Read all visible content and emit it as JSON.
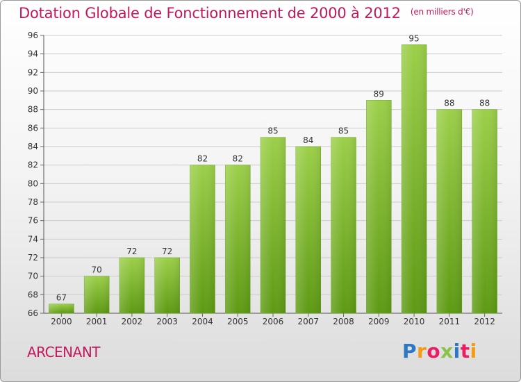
{
  "title": "Dotation Globale de Fonctionnement de 2000 à 2012",
  "unit": "(en milliers d'€)",
  "commune": "ARCENANT",
  "logo": {
    "text": "Proxiti",
    "letters": [
      {
        "ch": "P",
        "color": "#2b78c5"
      },
      {
        "ch": "r",
        "color": "#f39c12"
      },
      {
        "ch": "o",
        "color": "#e91e63"
      },
      {
        "ch": "x",
        "color": "#8bc34a"
      },
      {
        "ch": "i",
        "color": "#2b78c5"
      },
      {
        "ch": "t",
        "color": "#e91e63"
      },
      {
        "ch": "i",
        "color": "#f39c12"
      }
    ]
  },
  "colors": {
    "title": "#c2185b",
    "bar_top": "#9ccf4a",
    "bar_bottom": "#5e9a14",
    "grid": "#cccccc",
    "axis_text": "#333333"
  },
  "chart_data": {
    "type": "bar",
    "categories": [
      "2000",
      "2001",
      "2002",
      "2003",
      "2004",
      "2005",
      "2006",
      "2007",
      "2008",
      "2009",
      "2010",
      "2011",
      "2012"
    ],
    "values": [
      67,
      70,
      72,
      72,
      82,
      82,
      85,
      84,
      85,
      89,
      95,
      88,
      88
    ],
    "ylim": [
      66,
      96
    ],
    "yticks": [
      66,
      68,
      70,
      72,
      74,
      76,
      78,
      80,
      82,
      84,
      86,
      88,
      90,
      92,
      94,
      96
    ],
    "grid": true,
    "data_labels": true
  }
}
